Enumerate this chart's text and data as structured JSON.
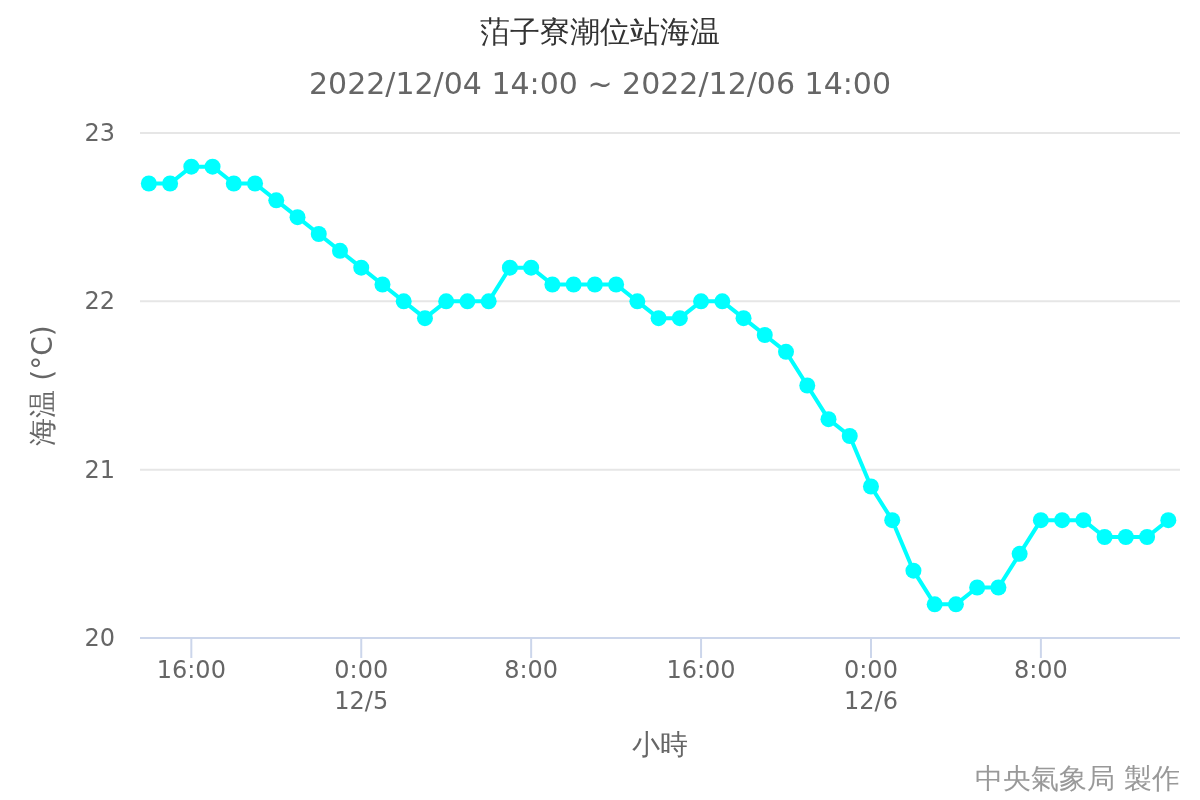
{
  "chart_data": {
    "type": "line",
    "title": "萡子寮潮位站海温",
    "subtitle": "2022/12/04 14:00 ~ 2022/12/06 14:00",
    "xlabel": "小時",
    "ylabel": "海温 (°C)",
    "annotations": [
      "中央氣象局 製作"
    ],
    "x": [
      "2022-12-04T14:00",
      "2022-12-04T15:00",
      "2022-12-04T16:00",
      "2022-12-04T17:00",
      "2022-12-04T18:00",
      "2022-12-04T19:00",
      "2022-12-04T20:00",
      "2022-12-04T21:00",
      "2022-12-04T22:00",
      "2022-12-04T23:00",
      "2022-12-05T00:00",
      "2022-12-05T01:00",
      "2022-12-05T02:00",
      "2022-12-05T03:00",
      "2022-12-05T04:00",
      "2022-12-05T05:00",
      "2022-12-05T06:00",
      "2022-12-05T07:00",
      "2022-12-05T08:00",
      "2022-12-05T09:00",
      "2022-12-05T10:00",
      "2022-12-05T11:00",
      "2022-12-05T12:00",
      "2022-12-05T13:00",
      "2022-12-05T14:00",
      "2022-12-05T15:00",
      "2022-12-05T16:00",
      "2022-12-05T17:00",
      "2022-12-05T18:00",
      "2022-12-05T19:00",
      "2022-12-05T20:00",
      "2022-12-05T21:00",
      "2022-12-05T22:00",
      "2022-12-05T23:00",
      "2022-12-06T00:00",
      "2022-12-06T01:00",
      "2022-12-06T02:00",
      "2022-12-06T03:00",
      "2022-12-06T04:00",
      "2022-12-06T05:00",
      "2022-12-06T06:00",
      "2022-12-06T07:00",
      "2022-12-06T08:00",
      "2022-12-06T09:00",
      "2022-12-06T10:00",
      "2022-12-06T11:00",
      "2022-12-06T12:00",
      "2022-12-06T13:00",
      "2022-12-06T14:00"
    ],
    "series": [
      {
        "color": "#00ffff",
        "values": [
          22.7,
          22.7,
          22.8,
          22.8,
          22.7,
          22.7,
          22.6,
          22.5,
          22.4,
          22.3,
          22.2,
          22.1,
          22.0,
          21.9,
          22.0,
          22.0,
          22.0,
          22.2,
          22.2,
          22.1,
          22.1,
          22.1,
          22.1,
          22.0,
          21.9,
          21.9,
          22.0,
          22.0,
          21.9,
          21.8,
          21.7,
          21.5,
          21.3,
          21.2,
          20.9,
          20.7,
          20.4,
          20.2,
          20.2,
          20.3,
          20.3,
          20.5,
          20.7,
          20.7,
          20.7,
          20.6,
          20.6,
          20.6,
          20.7
        ]
      }
    ],
    "xlim": [
      "2022-12-04T13:35",
      "2022-12-06T14:33"
    ],
    "xticks": [
      {
        "value": "2022-12-04T16:00",
        "label": "16:00"
      },
      {
        "value": "2022-12-05T00:00",
        "label": "0:00\n12/5"
      },
      {
        "value": "2022-12-05T08:00",
        "label": "8:00"
      },
      {
        "value": "2022-12-05T16:00",
        "label": "16:00"
      },
      {
        "value": "2022-12-06T00:00",
        "label": "0:00\n12/6"
      },
      {
        "value": "2022-12-06T08:00",
        "label": "8:00"
      }
    ],
    "ylim": [
      20,
      23
    ],
    "yticks": [
      20,
      21,
      22,
      23
    ],
    "grid": "y",
    "marker": "circle",
    "line_style": "solid"
  }
}
